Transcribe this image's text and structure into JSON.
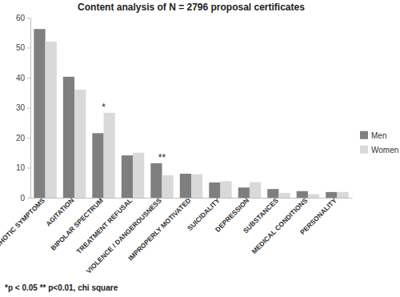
{
  "chart_data": {
    "type": "bar",
    "title": "Content analysis of N = 2796 proposal certificates",
    "categories": [
      "PSYCHOTIC SYMPTOMS",
      "AGITATION",
      "BIPOLAR SPECTRUM",
      "TREATMENT REFUSAL",
      "VIOLENCE / DANGEROUSNESS",
      "IMPROPERLY MOTIVATED",
      "SUICIDALITY",
      "DEPRESSION",
      "SUBSTANCES",
      "MEDICAL CONDITIONS",
      "PERSONALITY"
    ],
    "series": [
      {
        "name": "Men",
        "color": "#7f7f7f",
        "values": [
          56.2,
          40.3,
          21.5,
          14.1,
          11.5,
          8.0,
          5.1,
          3.4,
          2.9,
          2.2,
          1.9
        ]
      },
      {
        "name": "Women",
        "color": "#d9d9d9",
        "values": [
          52.0,
          36.0,
          28.3,
          15.0,
          7.5,
          7.8,
          5.5,
          5.2,
          1.6,
          1.2,
          1.9
        ]
      }
    ],
    "ylim": [
      0,
      60
    ],
    "yticks": [
      0,
      10,
      20,
      30,
      40,
      50,
      60
    ],
    "grid": false,
    "legend": "right",
    "annotations": [
      {
        "category": "BIPOLAR SPECTRUM",
        "text": "*"
      },
      {
        "category": "VIOLENCE / DANGEROUSNESS",
        "text": "**"
      }
    ],
    "note": "*p < 0.05 ** p<0.01, chi square"
  }
}
